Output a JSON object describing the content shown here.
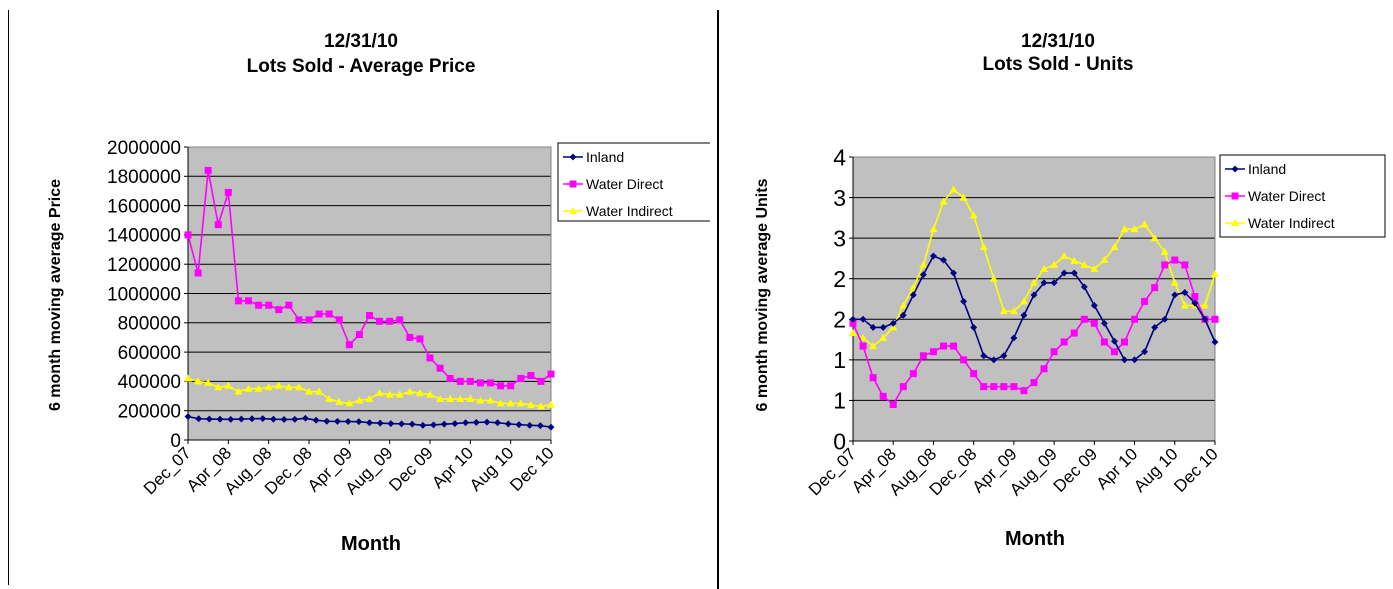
{
  "chart_data": [
    {
      "type": "line",
      "title_line1": "12/31/10",
      "title_line2": "Lots Sold - Average Price",
      "xlabel": "Month",
      "ylabel": "6 month moving average Price",
      "ylim": [
        0,
        2000000
      ],
      "yticks": [
        "0",
        "200000",
        "400000",
        "600000",
        "800000",
        "1000000",
        "1200000",
        "1400000",
        "1600000",
        "1800000",
        "2000000"
      ],
      "xtick_labels": [
        "Dec_07",
        "Apr_08",
        "Aug_08",
        "Dec_08",
        "Apr_09",
        "Aug_09",
        "Dec 09",
        "Apr 10",
        "Aug 10",
        "Dec 10"
      ],
      "legend_position": "top-right",
      "grid": true,
      "series": [
        {
          "name": "Inland",
          "color": "#000080",
          "marker": "diamond",
          "values": [
            160000,
            145000,
            143000,
            142000,
            141000,
            143000,
            145000,
            146000,
            142000,
            140000,
            141000,
            148000,
            135000,
            128000,
            127000,
            126000,
            125000,
            118000,
            115000,
            112000,
            110000,
            108000,
            100000,
            103000,
            108000,
            112000,
            118000,
            120000,
            122000,
            118000,
            110000,
            105000,
            100000,
            98000,
            88000
          ]
        },
        {
          "name": "Water Direct",
          "color": "#FF00FF",
          "marker": "square",
          "values": [
            1400000,
            1140000,
            1840000,
            1470000,
            1690000,
            950000,
            950000,
            920000,
            920000,
            890000,
            920000,
            820000,
            820000,
            860000,
            860000,
            820000,
            650000,
            720000,
            850000,
            810000,
            810000,
            820000,
            700000,
            690000,
            560000,
            490000,
            420000,
            400000,
            400000,
            390000,
            390000,
            370000,
            370000,
            420000,
            440000,
            400000,
            450000
          ]
        },
        {
          "name": "Water Indirect",
          "color": "#FFFF00",
          "marker": "triangle",
          "values": [
            420000,
            400000,
            390000,
            360000,
            370000,
            330000,
            350000,
            350000,
            360000,
            370000,
            360000,
            360000,
            330000,
            330000,
            280000,
            260000,
            250000,
            270000,
            280000,
            320000,
            310000,
            310000,
            330000,
            320000,
            310000,
            280000,
            280000,
            280000,
            280000,
            270000,
            270000,
            250000,
            250000,
            250000,
            240000,
            230000,
            240000
          ]
        }
      ]
    },
    {
      "type": "line",
      "title_line1": "12/31/10",
      "title_line2": "Lots Sold - Units",
      "xlabel": "Month",
      "ylabel": "6 month moving average Units",
      "ylim": [
        0,
        3.5
      ],
      "yticks": [
        "0",
        "1",
        "1",
        "2",
        "2",
        "3",
        "3",
        "4"
      ],
      "xtick_labels": [
        "Dec_07",
        "Apr_08",
        "Aug_08",
        "Dec_08",
        "Apr_09",
        "Aug_09",
        "Dec 09",
        "Apr 10",
        "Aug 10",
        "Dec 10"
      ],
      "legend_position": "top-right",
      "grid": true,
      "series": [
        {
          "name": "Inland",
          "color": "#000080",
          "marker": "diamond",
          "values": [
            1.5,
            1.5,
            1.4,
            1.4,
            1.45,
            1.55,
            1.8,
            2.05,
            2.28,
            2.23,
            2.07,
            1.72,
            1.4,
            1.05,
            1.0,
            1.05,
            1.27,
            1.55,
            1.8,
            1.95,
            1.95,
            2.07,
            2.07,
            1.9,
            1.67,
            1.45,
            1.23,
            1.0,
            1.0,
            1.1,
            1.4,
            1.5,
            1.8,
            1.83,
            1.7,
            1.5,
            1.22
          ]
        },
        {
          "name": "Water Direct",
          "color": "#FF00FF",
          "marker": "square",
          "values": [
            1.45,
            1.17,
            0.78,
            0.55,
            0.45,
            0.67,
            0.83,
            1.05,
            1.1,
            1.17,
            1.17,
            1.0,
            0.83,
            0.67,
            0.67,
            0.67,
            0.67,
            0.62,
            0.72,
            0.89,
            1.1,
            1.22,
            1.33,
            1.5,
            1.45,
            1.22,
            1.1,
            1.22,
            1.5,
            1.72,
            1.89,
            2.17,
            2.23,
            2.17,
            1.78,
            1.5,
            1.5
          ]
        },
        {
          "name": "Water Indirect",
          "color": "#FFFF00",
          "marker": "triangle",
          "values": [
            1.33,
            1.27,
            1.17,
            1.27,
            1.4,
            1.67,
            1.89,
            2.17,
            2.61,
            2.95,
            3.1,
            3.0,
            2.78,
            2.39,
            2.0,
            1.6,
            1.6,
            1.72,
            1.95,
            2.12,
            2.17,
            2.28,
            2.22,
            2.17,
            2.12,
            2.23,
            2.39,
            2.61,
            2.61,
            2.67,
            2.5,
            2.33,
            1.95,
            1.67,
            1.67,
            1.67,
            2.06
          ]
        }
      ]
    }
  ]
}
